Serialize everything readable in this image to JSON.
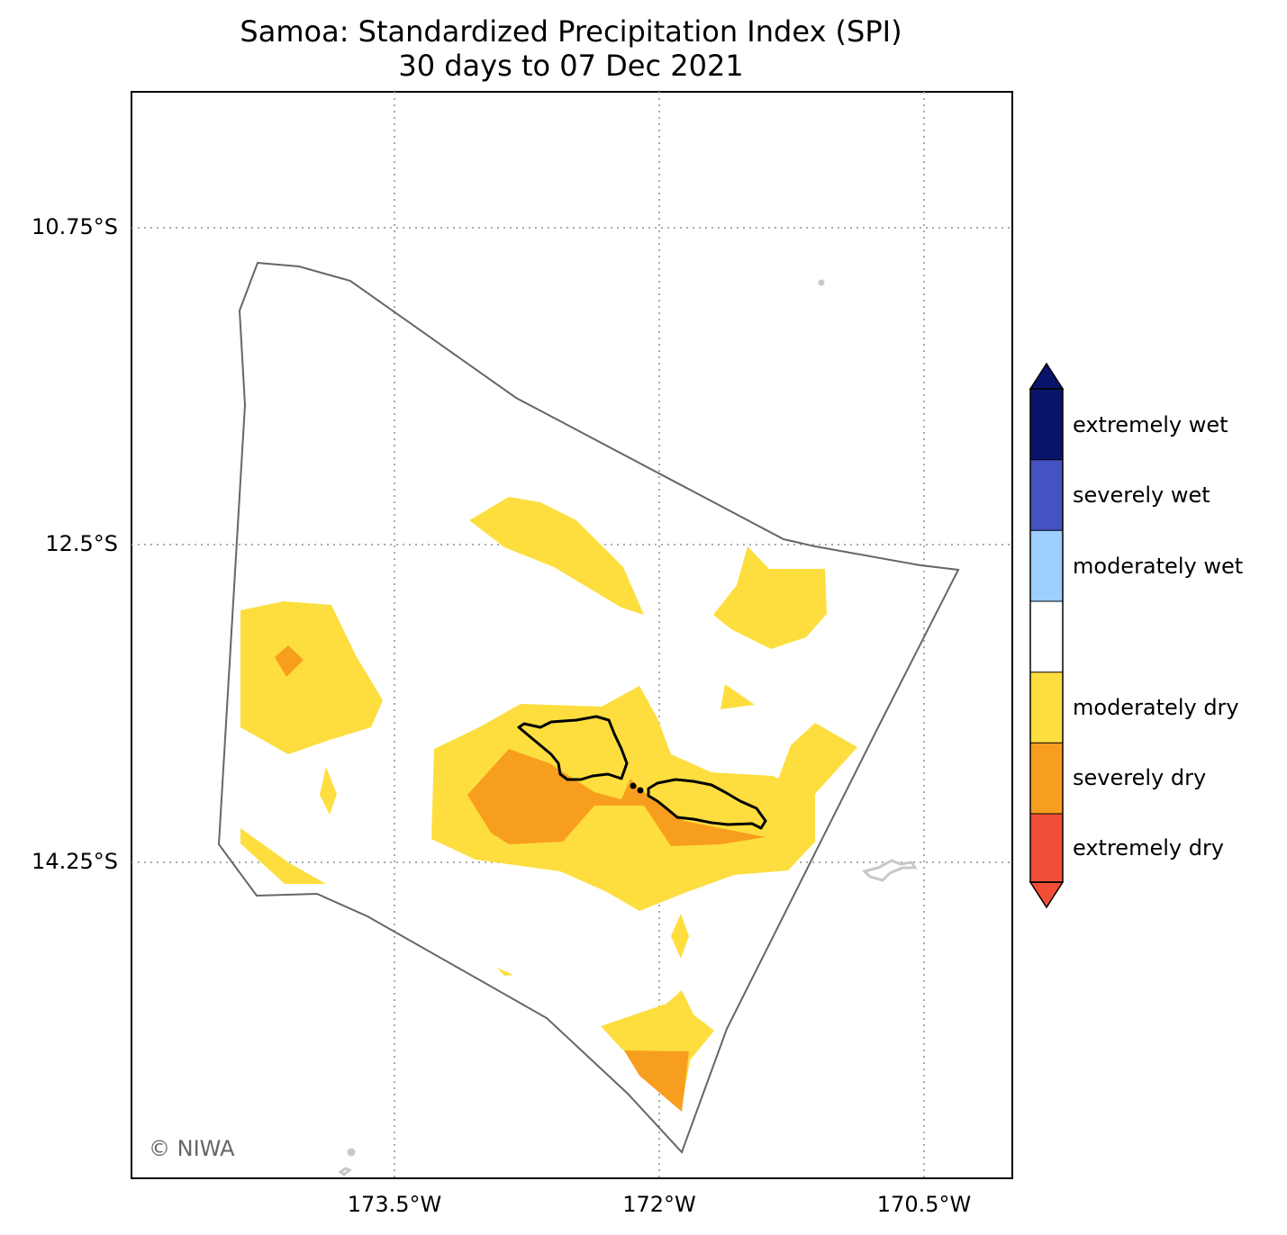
{
  "title": "Samoa: Standardized Precipitation Index (SPI)",
  "subtitle": "30 days to 07 Dec 2021",
  "credit": "© NIWA",
  "lat_labels": [
    "10.75°S",
    "12.5°S",
    "14.25°S"
  ],
  "lon_labels": [
    "173.5°W",
    "172°W",
    "170.5°W"
  ],
  "legend": {
    "categories": [
      {
        "label": "extremely wet",
        "color": "#08156b"
      },
      {
        "label": "severely wet",
        "color": "#4553c2"
      },
      {
        "label": "moderately wet",
        "color": "#9dcfff"
      },
      {
        "label": "",
        "color": "#ffffff"
      },
      {
        "label": "moderately dry",
        "color": "#fdde3e"
      },
      {
        "label": "severely dry",
        "color": "#f89e1f"
      },
      {
        "label": "extremely dry",
        "color": "#f24e37"
      }
    ],
    "extend_top_color": "#08156b",
    "extend_bottom_color": "#f24e37"
  },
  "colors": {
    "eez_boundary": "#666666",
    "coastline": "#000000",
    "neighbor_coast": "#c8c8c8",
    "grid": "#aaaaaa"
  }
}
